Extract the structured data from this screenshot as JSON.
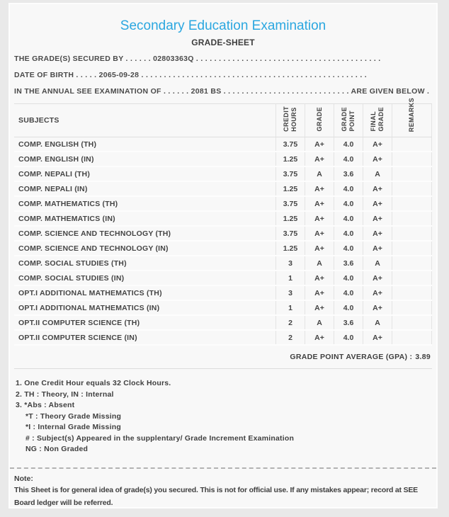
{
  "colors": {
    "accent": "#2ba7e0",
    "text": "#4a4a4a",
    "page_background": "#e9e9e9",
    "card_background": "#f8f8f8"
  },
  "header": {
    "title": "Secondary Education Examination",
    "subtitle": "GRADE-SHEET"
  },
  "info_lines": [
    "THE GRADE(S) SECURED BY . . . . . . 02803363Q . . . . . . . . . . . . . . . . . . . . . . . . . . . . . . . . . . . . . . . . .",
    "DATE OF BIRTH . . . . . 2065-09-28 . . . . . . . . . . . . . . . . . . . . . . . . . . . . . . . . . . . . . . . . . . . . . . . . . .",
    "IN THE ANNUAL SEE EXAMINATION OF . . . . . . 2081 BS . . . . . . . . . . . . . . . . . . . . . . . . . . . . ARE GIVEN BELOW . . ."
  ],
  "student": {
    "symbol_number": "02803363Q",
    "date_of_birth": "2065-09-28",
    "exam_year": "2081 BS"
  },
  "table": {
    "subjects_header": "SUBJECTS",
    "rotated_headers": [
      "CREDIT\nHOURS",
      "GRADE",
      "GRADE\nPOINT",
      "FINAL\nGRADE",
      "REMARKS"
    ],
    "rows": [
      {
        "subject": "COMP. ENGLISH (TH)",
        "credit": "3.75",
        "grade": "A+",
        "point": "4.0",
        "final": "A+",
        "remarks": ""
      },
      {
        "subject": "COMP. ENGLISH (IN)",
        "credit": "1.25",
        "grade": "A+",
        "point": "4.0",
        "final": "A+",
        "remarks": ""
      },
      {
        "subject": "COMP. NEPALI (TH)",
        "credit": "3.75",
        "grade": "A",
        "point": "3.6",
        "final": "A",
        "remarks": ""
      },
      {
        "subject": "COMP. NEPALI (IN)",
        "credit": "1.25",
        "grade": "A+",
        "point": "4.0",
        "final": "A+",
        "remarks": ""
      },
      {
        "subject": "COMP. MATHEMATICS (TH)",
        "credit": "3.75",
        "grade": "A+",
        "point": "4.0",
        "final": "A+",
        "remarks": ""
      },
      {
        "subject": "COMP. MATHEMATICS (IN)",
        "credit": "1.25",
        "grade": "A+",
        "point": "4.0",
        "final": "A+",
        "remarks": ""
      },
      {
        "subject": "COMP. SCIENCE AND TECHNOLOGY (TH)",
        "credit": "3.75",
        "grade": "A+",
        "point": "4.0",
        "final": "A+",
        "remarks": ""
      },
      {
        "subject": "COMP. SCIENCE AND TECHNOLOGY (IN)",
        "credit": "1.25",
        "grade": "A+",
        "point": "4.0",
        "final": "A+",
        "remarks": ""
      },
      {
        "subject": "COMP. SOCIAL STUDIES (TH)",
        "credit": "3",
        "grade": "A",
        "point": "3.6",
        "final": "A",
        "remarks": ""
      },
      {
        "subject": "COMP. SOCIAL STUDIES (IN)",
        "credit": "1",
        "grade": "A+",
        "point": "4.0",
        "final": "A+",
        "remarks": ""
      },
      {
        "subject": "OPT.I ADDITIONAL MATHEMATICS (TH)",
        "credit": "3",
        "grade": "A+",
        "point": "4.0",
        "final": "A+",
        "remarks": ""
      },
      {
        "subject": "OPT.I ADDITIONAL MATHEMATICS (IN)",
        "credit": "1",
        "grade": "A+",
        "point": "4.0",
        "final": "A+",
        "remarks": ""
      },
      {
        "subject": "OPT.II COMPUTER SCIENCE (TH)",
        "credit": "2",
        "grade": "A",
        "point": "3.6",
        "final": "A",
        "remarks": ""
      },
      {
        "subject": "OPT.II COMPUTER SCIENCE (IN)",
        "credit": "2",
        "grade": "A+",
        "point": "4.0",
        "final": "A+",
        "remarks": ""
      }
    ]
  },
  "gpa": {
    "label": "GRADE POINT AVERAGE (GPA) :",
    "value": "3.89"
  },
  "footnotes": [
    {
      "text": "1. One Credit Hour equals 32 Clock Hours.",
      "indent": 0
    },
    {
      "text": "2. TH : Theory, IN : Internal",
      "indent": 0
    },
    {
      "text": "3. *Abs : Absent",
      "indent": 0
    },
    {
      "text": "*T : Theory Grade Missing",
      "indent": 1
    },
    {
      "text": "*I : Internal Grade Missing",
      "indent": 1
    },
    {
      "text": "# : Subject(s) Appeared in the supplentary/ Grade Increment Examination",
      "indent": 1
    },
    {
      "text": "NG : Non Graded",
      "indent": 1
    }
  ],
  "note": {
    "label": "Note:",
    "text": "This Sheet is for general idea of grade(s) you secured. This is not for official use. If any mistakes appear; record at SEE Board ledger will be referred."
  }
}
